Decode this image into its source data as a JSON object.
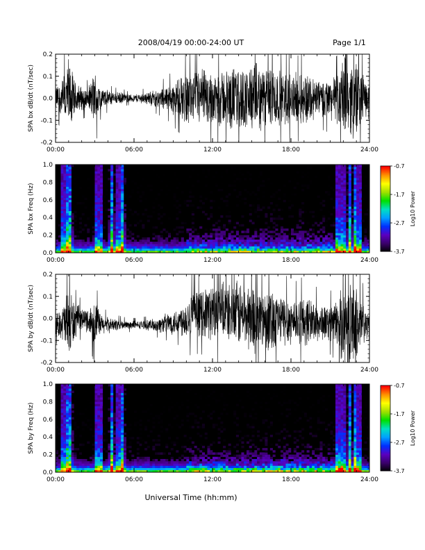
{
  "header": {
    "title": "2008/04/19   00:00-24:00 UT",
    "page": "Page 1/1"
  },
  "footer": {
    "xlabel": "Universal Time (hh:mm)"
  },
  "colors": {
    "trace": "#000000",
    "spectrogram_background": "#000000",
    "colormap": [
      "#000000",
      "#3a006a",
      "#5a00c0",
      "#0030ff",
      "#00a0ff",
      "#00e0c0",
      "#00e000",
      "#a0e000",
      "#ffff00",
      "#ff9000",
      "#ff0000"
    ]
  },
  "chart_data": [
    {
      "type": "line",
      "ylabel": "SPA bx dB/dt (nT/sec)",
      "ylim": [
        -0.2,
        0.2
      ],
      "yticks": [
        "0.2",
        "0.1",
        "0.0",
        "-0.1",
        "-0.2"
      ],
      "xlim": [
        "00:00",
        "24:00"
      ],
      "xticks": [
        "00:00",
        "06:00",
        "12:00",
        "18:00",
        "24:00"
      ],
      "x_hours": [
        0,
        0.5,
        1,
        1.5,
        2,
        2.5,
        3,
        3.5,
        4,
        4.5,
        5,
        5.5,
        6,
        6.5,
        7,
        7.5,
        8,
        8.5,
        9,
        9.5,
        10,
        10.5,
        11,
        11.5,
        12,
        12.5,
        13,
        13.5,
        14,
        14.5,
        15,
        15.5,
        16,
        16.5,
        17,
        17.5,
        18,
        18.5,
        19,
        19.5,
        20,
        20.5,
        21,
        21.5,
        22,
        22.5,
        23,
        23.5,
        24
      ],
      "envelope": [
        0.06,
        0.09,
        0.2,
        0.08,
        0.06,
        0.05,
        0.14,
        0.05,
        0.04,
        0.03,
        0.03,
        0.02,
        0.02,
        0.025,
        0.03,
        0.04,
        0.05,
        0.06,
        0.08,
        0.1,
        0.13,
        0.12,
        0.15,
        0.14,
        0.13,
        0.15,
        0.14,
        0.16,
        0.16,
        0.15,
        0.17,
        0.17,
        0.15,
        0.2,
        0.13,
        0.14,
        0.13,
        0.12,
        0.14,
        0.12,
        0.1,
        0.09,
        0.1,
        0.12,
        0.2,
        0.18,
        0.2,
        0.12,
        0.05
      ],
      "offset": [
        0.0,
        0.0,
        0.0,
        0.0,
        0.0,
        0.0,
        0.0,
        0.0,
        0.0,
        0.0,
        0.0,
        0.0,
        0.0,
        0.0,
        0.0,
        0.0,
        0.0,
        0.0,
        0.0,
        0.0,
        0.0,
        0.0,
        0.0,
        0.0,
        0.0,
        0.0,
        0.0,
        0.0,
        0.0,
        0.0,
        0.0,
        0.0,
        0.0,
        0.0,
        0.0,
        0.0,
        0.0,
        0.0,
        0.0,
        0.0,
        0.0,
        0.0,
        0.0,
        0.0,
        0.0,
        0.0,
        0.0,
        0.0,
        0.0
      ]
    },
    {
      "type": "heatmap",
      "ylabel": "SPA bx Freq (Hz)",
      "ylim": [
        0.0,
        1.0
      ],
      "yticks": [
        "1.0",
        "0.8",
        "0.6",
        "0.4",
        "0.2",
        "0.0"
      ],
      "xlim": [
        "00:00",
        "24:00"
      ],
      "xticks": [
        "00:00",
        "06:00",
        "12:00",
        "18:00",
        "24:00"
      ],
      "colorbar": {
        "label": "Log10 Power",
        "ticks": [
          "-0.7",
          "-1.7",
          "-2.7",
          "-3.7"
        ],
        "range": [
          -3.7,
          -0.7
        ]
      },
      "bursts_hours": [
        0.6,
        0.9,
        1.1,
        3.2,
        3.4,
        4.3,
        4.8,
        5.1,
        21.6,
        22.0,
        22.5,
        22.9,
        23.2
      ]
    },
    {
      "type": "line",
      "ylabel": "SPA by dB/dt (nT/sec)",
      "ylim": [
        -0.2,
        0.2
      ],
      "yticks": [
        "0.2",
        "0.1",
        "0.0",
        "-0.1",
        "-0.2"
      ],
      "xlim": [
        "00:00",
        "24:00"
      ],
      "xticks": [
        "00:00",
        "06:00",
        "12:00",
        "18:00",
        "24:00"
      ],
      "x_hours": [
        0,
        0.5,
        1,
        1.5,
        2,
        2.5,
        3,
        3.5,
        4,
        4.5,
        5,
        5.5,
        6,
        6.5,
        7,
        7.5,
        8,
        8.5,
        9,
        9.5,
        10,
        10.5,
        11,
        11.5,
        12,
        12.5,
        13,
        13.5,
        14,
        14.5,
        15,
        15.5,
        16,
        16.5,
        17,
        17.5,
        18,
        18.5,
        19,
        19.5,
        20,
        20.5,
        21,
        21.5,
        22,
        22.5,
        23,
        23.5,
        24
      ],
      "envelope": [
        0.05,
        0.08,
        0.2,
        0.09,
        0.05,
        0.06,
        0.12,
        0.05,
        0.04,
        0.03,
        0.025,
        0.02,
        0.02,
        0.02,
        0.025,
        0.03,
        0.04,
        0.05,
        0.06,
        0.07,
        0.1,
        0.12,
        0.11,
        0.13,
        0.14,
        0.15,
        0.13,
        0.15,
        0.17,
        0.15,
        0.18,
        0.16,
        0.14,
        0.18,
        0.12,
        0.13,
        0.12,
        0.11,
        0.13,
        0.11,
        0.1,
        0.09,
        0.09,
        0.11,
        0.2,
        0.2,
        0.2,
        0.12,
        0.04
      ],
      "offset": [
        -0.03,
        -0.02,
        -0.03,
        -0.01,
        0.0,
        -0.01,
        -0.02,
        -0.03,
        -0.03,
        -0.03,
        -0.03,
        -0.03,
        -0.03,
        -0.03,
        -0.03,
        -0.03,
        -0.03,
        -0.02,
        -0.02,
        -0.01,
        0.0,
        0.02,
        0.02,
        0.03,
        0.03,
        0.03,
        0.03,
        0.02,
        0.02,
        0.01,
        0.0,
        0.0,
        0.0,
        0.0,
        0.0,
        -0.01,
        -0.01,
        -0.01,
        -0.01,
        -0.01,
        -0.02,
        -0.02,
        -0.02,
        -0.02,
        -0.03,
        -0.03,
        -0.03,
        -0.03,
        -0.03
      ]
    },
    {
      "type": "heatmap",
      "ylabel": "SPA by Freq (Hz)",
      "ylim": [
        0.0,
        1.0
      ],
      "yticks": [
        "1.0",
        "0.8",
        "0.6",
        "0.4",
        "0.2",
        "0.0"
      ],
      "xlim": [
        "00:00",
        "24:00"
      ],
      "xticks": [
        "00:00",
        "06:00",
        "12:00",
        "18:00",
        "24:00"
      ],
      "colorbar": {
        "label": "Log10 Power",
        "ticks": [
          "-0.7",
          "-1.7",
          "-2.7",
          "-3.7"
        ],
        "range": [
          -3.7,
          -0.7
        ]
      },
      "bursts_hours": [
        0.6,
        0.9,
        1.1,
        3.2,
        3.4,
        4.3,
        4.8,
        5.1,
        21.6,
        22.0,
        22.5,
        22.9,
        23.2
      ]
    }
  ]
}
